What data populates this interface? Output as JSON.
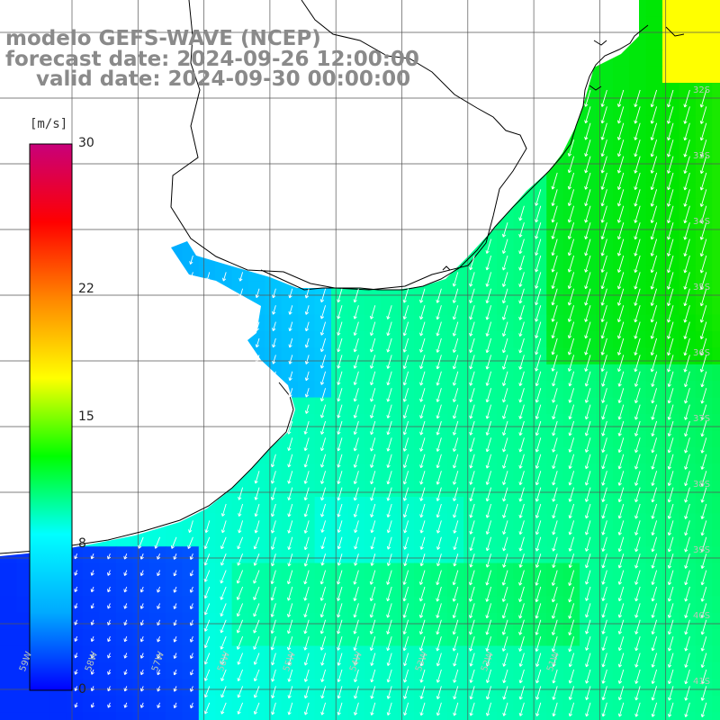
{
  "title": {
    "line1": "modelo GEFS-WAVE (NCEP)",
    "line2": "forecast date: 2024-09-26 12:00:00",
    "line3": "valid date: 2024-09-30 00:00:00"
  },
  "colorbar": {
    "unit": "[m/s]",
    "ticks": [
      {
        "label": "30",
        "value": 30
      },
      {
        "label": "22",
        "value": 22
      },
      {
        "label": "15",
        "value": 15
      },
      {
        "label": "8",
        "value": 8
      },
      {
        "label": "0",
        "value": 0
      }
    ],
    "colors": [
      "#0000ff",
      "#00aaff",
      "#00ffff",
      "#00ff00",
      "#ffff00",
      "#ff8800",
      "#ff0000",
      "#c8007a"
    ]
  },
  "lat_labels": [
    "32S",
    "33S",
    "34S",
    "35S",
    "36S",
    "37S",
    "38S",
    "39S",
    "40S",
    "41S"
  ],
  "lon_labels": [
    "59W",
    "58W",
    "57W",
    "56W",
    "55W",
    "54W",
    "53W",
    "52W",
    "51W"
  ],
  "colors": {
    "land": "#ffffff",
    "grid": "#555555",
    "coast": "#000000",
    "vector": "#ffffff"
  }
}
